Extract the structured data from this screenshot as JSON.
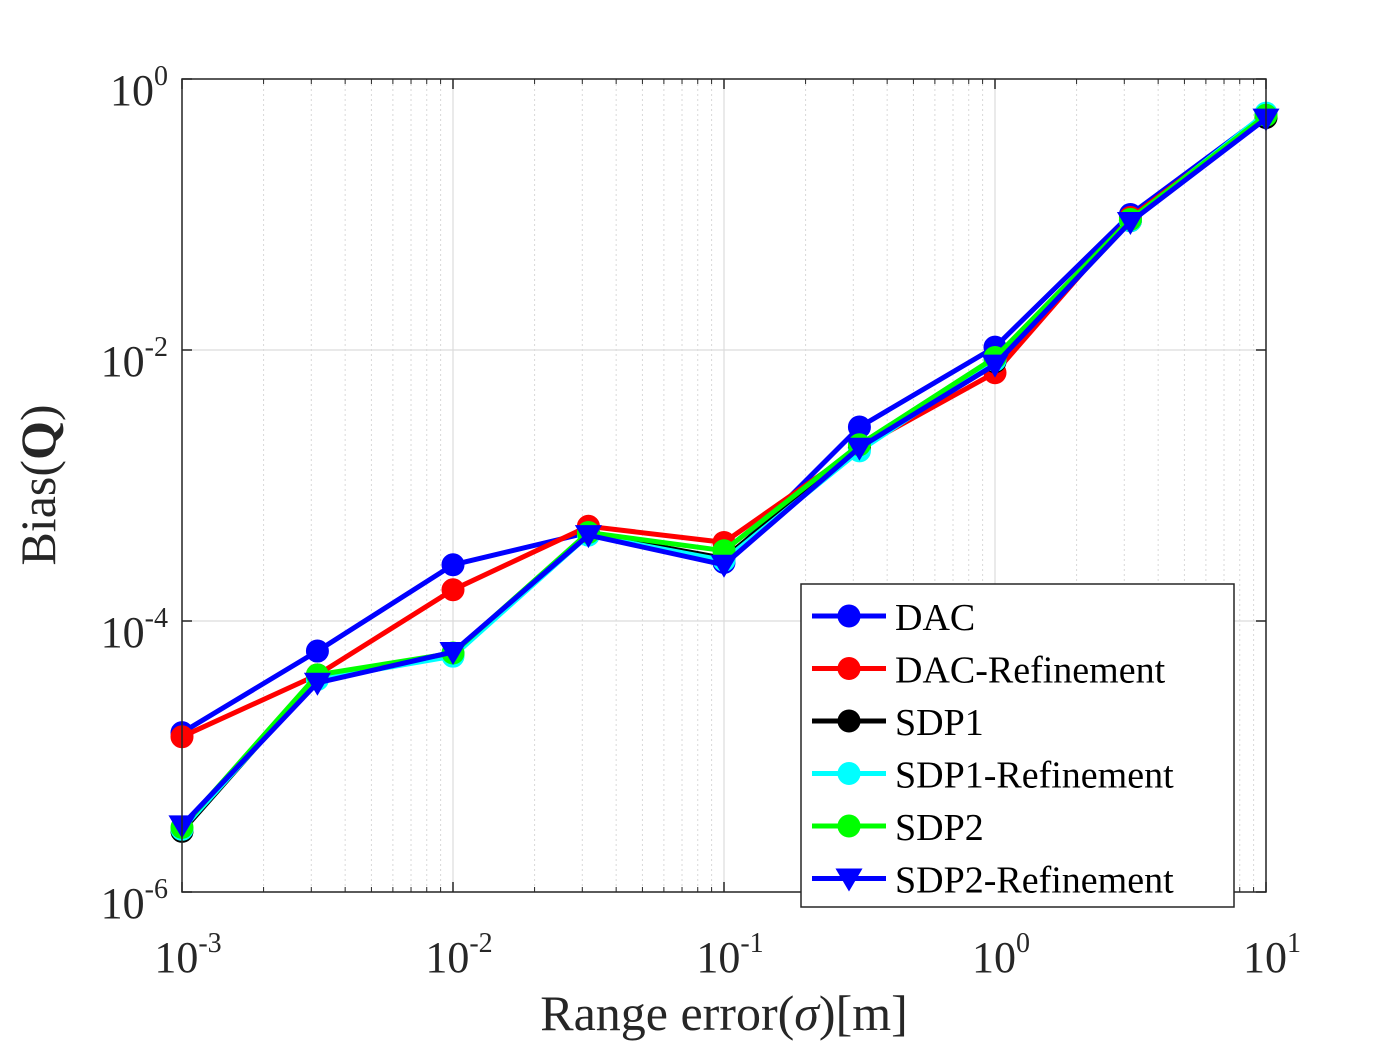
{
  "chart_data": {
    "type": "line",
    "xscale": "log",
    "yscale": "log",
    "xlim": [
      0.001,
      10
    ],
    "ylim": [
      1e-06,
      1
    ],
    "xlabel": "Range error(σ)[m]",
    "ylabel": "Bias(Q)",
    "ylabel_parts": {
      "prefix": "Bias(",
      "bold": "Q",
      "suffix": ")"
    },
    "xlabel_parts": {
      "prefix": "Range error(",
      "italic": "σ",
      "suffix": ")[m]"
    },
    "x_ticks": [
      {
        "base": "10",
        "exp": "-3",
        "value": 0.001
      },
      {
        "base": "10",
        "exp": "-2",
        "value": 0.01
      },
      {
        "base": "10",
        "exp": "-1",
        "value": 0.1
      },
      {
        "base": "10",
        "exp": "0",
        "value": 1
      },
      {
        "base": "10",
        "exp": "1",
        "value": 10
      }
    ],
    "y_ticks": [
      {
        "base": "10",
        "exp": "-6",
        "value": 1e-06
      },
      {
        "base": "10",
        "exp": "-4",
        "value": 0.0001
      },
      {
        "base": "10",
        "exp": "-2",
        "value": 0.01
      },
      {
        "base": "10",
        "exp": "0",
        "value": 1
      }
    ],
    "grid": true,
    "legend_position": "bottom-right",
    "x": [
      0.001,
      0.00316,
      0.01,
      0.0316,
      0.1,
      0.316,
      1,
      3.16,
      10
    ],
    "series": [
      {
        "name": "DAC",
        "color": "#0000ff",
        "marker": "circle",
        "values": [
          1.5e-05,
          6e-05,
          0.00026,
          0.00045,
          0.00027,
          0.0027,
          0.0105,
          0.1,
          0.55
        ]
      },
      {
        "name": "DAC-Refinement",
        "color": "#ff0000",
        "marker": "circle",
        "values": [
          1.4e-05,
          4e-05,
          0.00017,
          0.0005,
          0.00038,
          0.0019,
          0.0068,
          0.095,
          0.53
        ]
      },
      {
        "name": "SDP1",
        "color": "#000000",
        "marker": "circle",
        "values": [
          2.8e-06,
          3.8e-05,
          5.7e-05,
          0.00044,
          0.00029,
          0.0019,
          0.0082,
          0.09,
          0.52
        ]
      },
      {
        "name": "SDP1-Refinement",
        "color": "#00ffff",
        "marker": "circle",
        "values": [
          2.9e-06,
          3.7e-05,
          5.5e-05,
          0.00043,
          0.00028,
          0.0018,
          0.0084,
          0.09,
          0.56
        ]
      },
      {
        "name": "SDP2",
        "color": "#00ff00",
        "marker": "circle",
        "values": [
          3e-06,
          4e-05,
          5.8e-05,
          0.00045,
          0.00033,
          0.002,
          0.0088,
          0.092,
          0.54
        ]
      },
      {
        "name": "SDP2-Refinement",
        "color": "#0000ff",
        "marker": "triangle-down",
        "values": [
          3.1e-06,
          3.5e-05,
          5.9e-05,
          0.00043,
          0.00026,
          0.0019,
          0.0078,
          0.088,
          0.51
        ]
      }
    ]
  }
}
